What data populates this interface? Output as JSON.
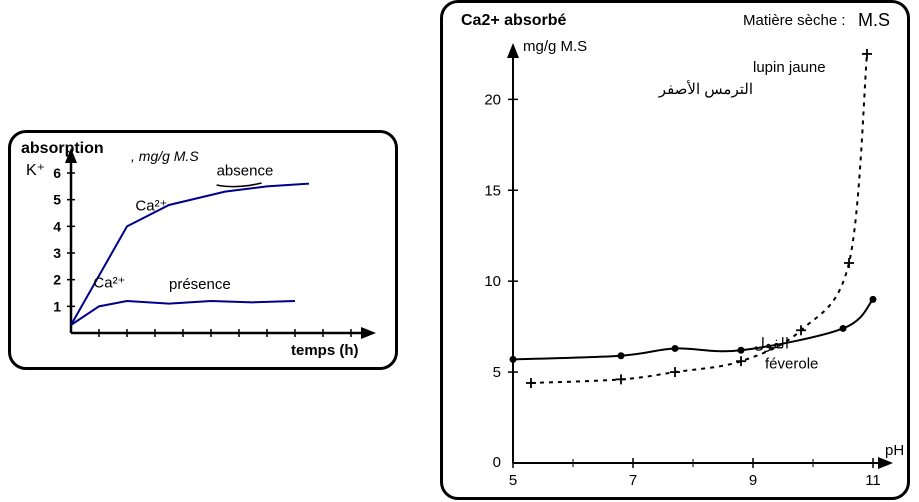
{
  "leftChart": {
    "type": "line",
    "title_y": "absorption",
    "ion": "K⁺",
    "unit_label": "mg/g M.S",
    "x_label": "temps (h)",
    "ylim": [
      0,
      6
    ],
    "ytick_step": 1,
    "x_tick_count": 10,
    "background_color": "#ffffff",
    "axis_color": "#000000",
    "line_color": "#00008b",
    "line_width": 2,
    "title_fontsize": 16,
    "tick_fontsize": 14,
    "label_fontsize": 15,
    "series": [
      {
        "name": "absence",
        "label_top": "Ca²⁺",
        "label_right": "absence",
        "underline_path": true,
        "points_h": [
          0.0,
          2.0,
          3.5,
          5.5,
          7.0,
          8.5
        ],
        "points_y": [
          0.3,
          4.0,
          4.8,
          5.3,
          5.5,
          5.6
        ]
      },
      {
        "name": "presence",
        "label_top": "Ca²⁺",
        "label_right": "présence",
        "points_h": [
          0.0,
          1.0,
          2.0,
          3.5,
          5.0,
          6.5,
          8.0
        ],
        "points_y": [
          0.3,
          1.0,
          1.2,
          1.1,
          1.2,
          1.15,
          1.2
        ]
      }
    ]
  },
  "rightChart": {
    "type": "line",
    "title_left": "Ca2+ absorbé",
    "title_right_label": "Matière sèche :",
    "title_right_value": "M.S",
    "y_unit": "mg/g M.S",
    "x_label": "pH",
    "xlim": [
      5,
      11
    ],
    "ylim": [
      0,
      22
    ],
    "yticks": [
      5,
      10,
      15,
      20
    ],
    "xticks": [
      5,
      7,
      9,
      11
    ],
    "background_color": "#ffffff",
    "axis_color": "#000000",
    "line_color": "#000000",
    "dash_pattern": "4,5",
    "line_width": 2,
    "title_fontsize": 16,
    "tick_fontsize": 15,
    "series": [
      {
        "name": "lupin",
        "label_fr": "lupin jaune",
        "label_ar": "الترمس الأصفر",
        "style": "dashed",
        "marker": "plus",
        "x": [
          5.3,
          6.8,
          7.7,
          8.8,
          9.8,
          10.6,
          10.9
        ],
        "y": [
          4.4,
          4.6,
          5.0,
          5.6,
          7.3,
          11.0,
          22.5
        ]
      },
      {
        "name": "feverole",
        "label_fr": "féverole",
        "label_ar": "الفول",
        "style": "solid",
        "marker": "dot",
        "x": [
          5.0,
          6.8,
          7.7,
          8.8,
          10.5,
          11.0
        ],
        "y": [
          5.7,
          5.9,
          6.3,
          6.2,
          7.4,
          9.0
        ]
      }
    ]
  }
}
